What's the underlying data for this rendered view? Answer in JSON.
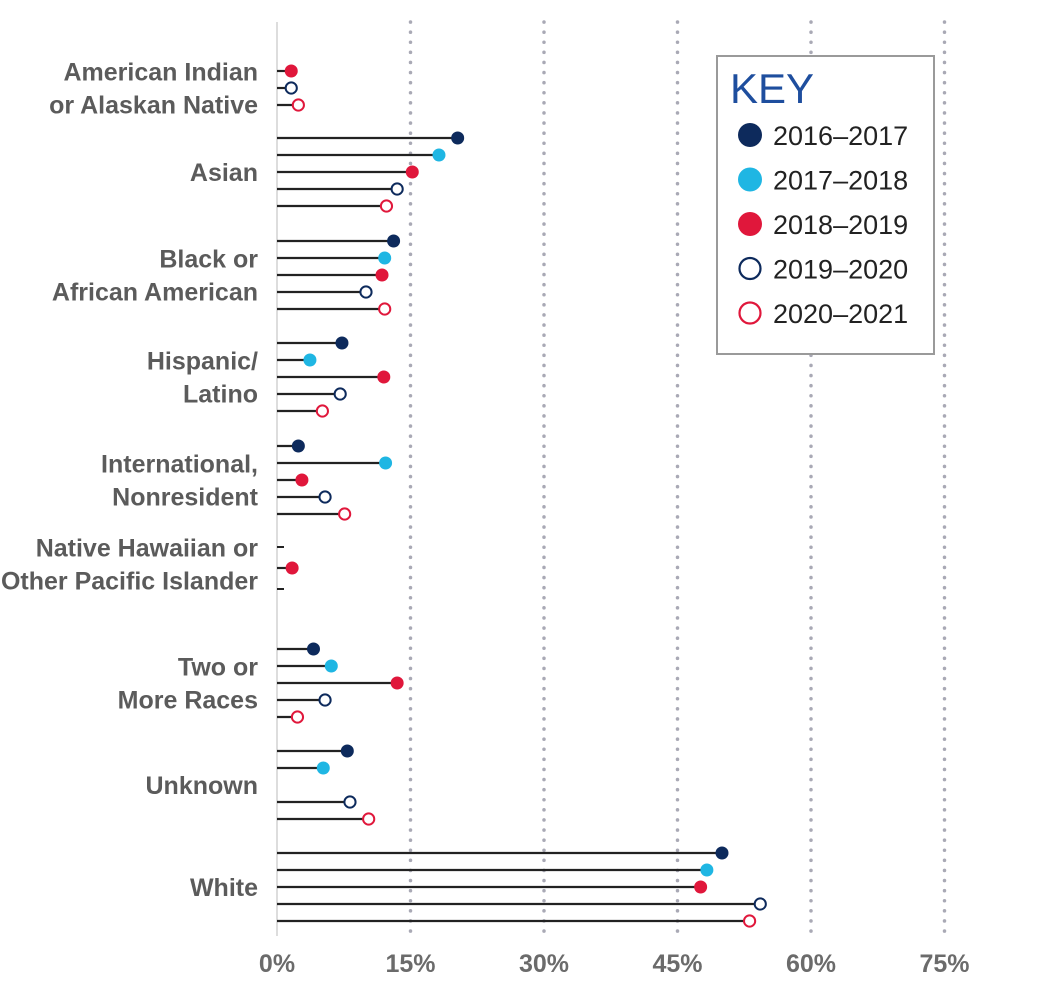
{
  "chart_data": {
    "type": "lollipop",
    "orientation": "horizontal",
    "legend_title": "KEY",
    "legend_position": "top-right",
    "x_ticks": [
      "0%",
      "15%",
      "30%",
      "45%",
      "60%",
      "75%"
    ],
    "x_tick_values": [
      0,
      15,
      30,
      45,
      60,
      75
    ],
    "xlim": [
      0,
      75
    ],
    "grid": "vertical dotted",
    "series": [
      {
        "name": "2016–2017",
        "color": "#0d2a5c",
        "style": "filled"
      },
      {
        "name": "2017–2018",
        "color": "#1fb6e3",
        "style": "filled"
      },
      {
        "name": "2018–2019",
        "color": "#e0173b",
        "style": "filled"
      },
      {
        "name": "2019–2020",
        "color": "#0d2a5c",
        "style": "hollow"
      },
      {
        "name": "2020–2021",
        "color": "#e0173b",
        "style": "hollow"
      }
    ],
    "categories": [
      {
        "lines": [
          "American Indian",
          "or Alaskan Native"
        ],
        "values": [
          null,
          null,
          1.6,
          1.6,
          2.4
        ]
      },
      {
        "lines": [
          "Asian"
        ],
        "values": [
          20.3,
          18.2,
          15.2,
          13.5,
          12.3
        ]
      },
      {
        "lines": [
          "Black or",
          "African American"
        ],
        "values": [
          13.1,
          12.1,
          11.8,
          10.0,
          12.1
        ]
      },
      {
        "lines": [
          "Hispanic/",
          "Latino"
        ],
        "values": [
          7.3,
          3.7,
          12.0,
          7.1,
          5.1
        ]
      },
      {
        "lines": [
          "International,",
          "Nonresident"
        ],
        "values": [
          2.4,
          12.2,
          2.8,
          5.4,
          7.6
        ]
      },
      {
        "lines": [
          "Native Hawaiian or",
          "Other Pacific Islander"
        ],
        "values": [
          null,
          null,
          1.7,
          null,
          null
        ]
      },
      {
        "lines": [
          "Two or",
          "More Races"
        ],
        "values": [
          4.1,
          6.1,
          13.5,
          5.4,
          2.3
        ]
      },
      {
        "lines": [
          "Unknown"
        ],
        "values": [
          7.9,
          5.2,
          null,
          8.2,
          10.3
        ]
      },
      {
        "lines": [
          "White"
        ],
        "values": [
          50.0,
          48.3,
          47.6,
          54.3,
          53.1
        ]
      }
    ]
  }
}
